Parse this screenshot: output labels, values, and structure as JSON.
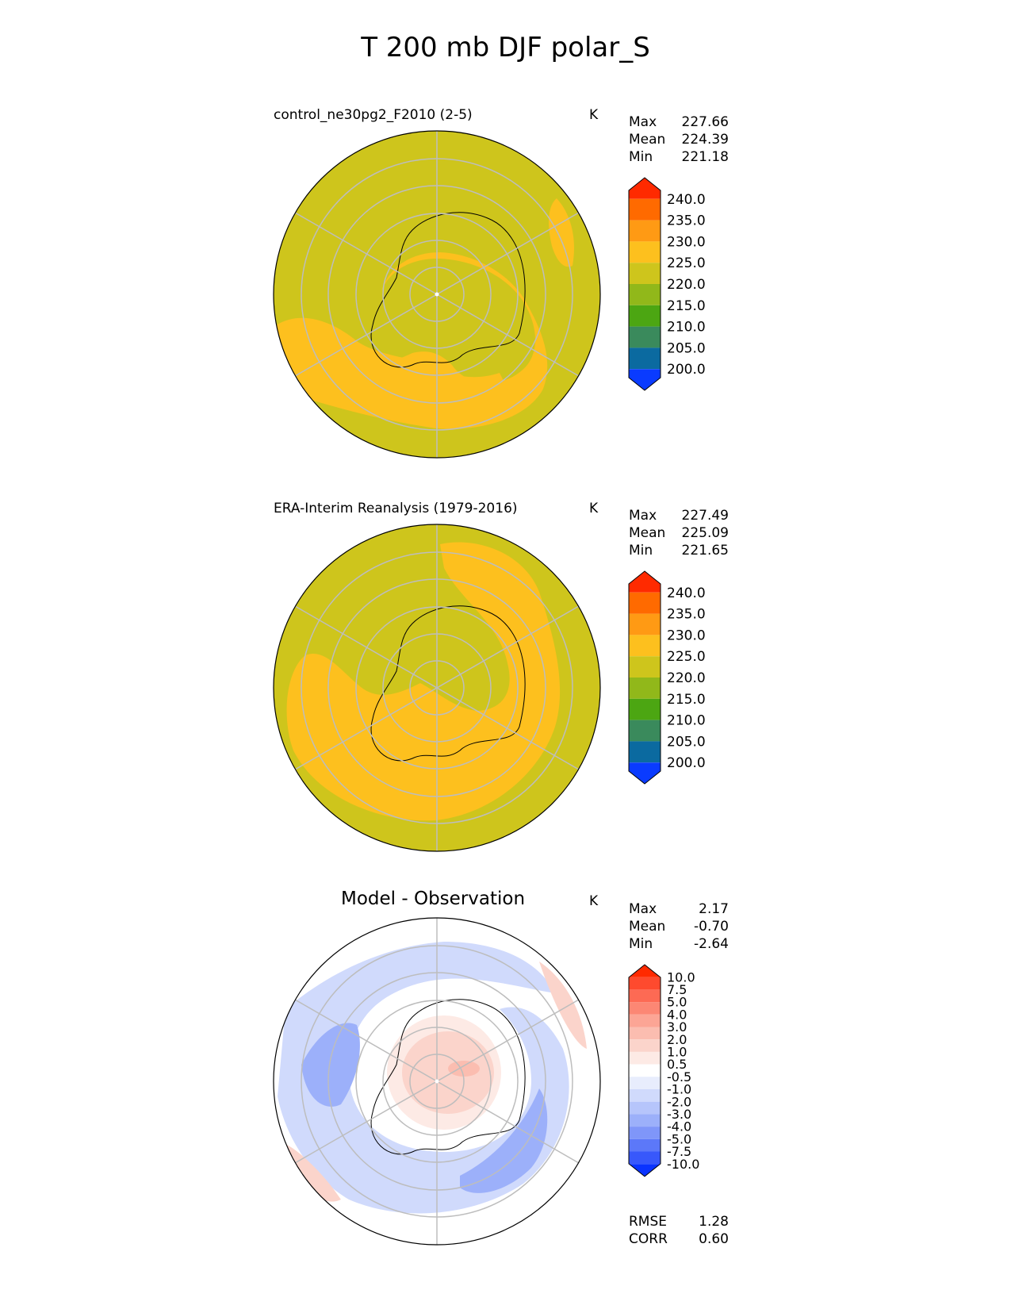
{
  "figure": {
    "title": "T 200 mb DJF polar_S"
  },
  "panels": [
    {
      "id": "test",
      "title": "control_ne30pg2_F2010 (2-5)",
      "units": "K",
      "stats": [
        {
          "label": "Max",
          "value": "227.66"
        },
        {
          "label": "Mean",
          "value": "224.39"
        },
        {
          "label": "Min",
          "value": "221.18"
        }
      ],
      "colorbar": {
        "ticks": [
          "240.0",
          "235.0",
          "230.0",
          "225.0",
          "220.0",
          "215.0",
          "210.0",
          "205.0",
          "200.0"
        ],
        "colors_top_to_bottom": [
          "#ff2a00",
          "#ff6a00",
          "#ff9a14",
          "#fdc01e",
          "#cec51c",
          "#91b81a",
          "#4ca612",
          "#3a8a5c",
          "#0b6aa0",
          "#0a3bff"
        ]
      }
    },
    {
      "id": "reference",
      "title": "ERA-Interim Reanalysis (1979-2016)",
      "units": "K",
      "stats": [
        {
          "label": "Max",
          "value": "227.49"
        },
        {
          "label": "Mean",
          "value": "225.09"
        },
        {
          "label": "Min",
          "value": "221.65"
        }
      ],
      "colorbar": {
        "ticks": [
          "240.0",
          "235.0",
          "230.0",
          "225.0",
          "220.0",
          "215.0",
          "210.0",
          "205.0",
          "200.0"
        ],
        "colors_top_to_bottom": [
          "#ff2a00",
          "#ff6a00",
          "#ff9a14",
          "#fdc01e",
          "#cec51c",
          "#91b81a",
          "#4ca612",
          "#3a8a5c",
          "#0b6aa0",
          "#0a3bff"
        ]
      }
    },
    {
      "id": "diff",
      "title": "Model - Observation",
      "units": "K",
      "stats": [
        {
          "label": "Max",
          "value": "2.17"
        },
        {
          "label": "Mean",
          "value": "-0.70"
        },
        {
          "label": "Min",
          "value": "-2.64"
        }
      ],
      "extra_stats": [
        {
          "label": "RMSE",
          "value": "1.28"
        },
        {
          "label": "CORR",
          "value": "0.60"
        }
      ],
      "colorbar": {
        "ticks": [
          "10.0",
          "7.5",
          "5.0",
          "4.0",
          "3.0",
          "2.0",
          "1.0",
          "0.5",
          "-0.5",
          "-1.0",
          "-2.0",
          "-3.0",
          "-4.0",
          "-5.0",
          "-7.5",
          "-10.0"
        ],
        "colors_top_to_bottom": [
          "#ff2a00",
          "#fe4a2e",
          "#fd6a54",
          "#fc8774",
          "#fca595",
          "#fbbdb0",
          "#fbd4cb",
          "#fdeae5",
          "#ffffff",
          "#e8edfd",
          "#d0dafc",
          "#b6c5fb",
          "#9cb0fa",
          "#7f96f9",
          "#5c78f9",
          "#3858fb",
          "#0a33ff"
        ]
      }
    }
  ],
  "chart_data": [
    {
      "type": "heatmap",
      "projection": "south polar stereographic",
      "title": "control_ne30pg2_F2010 (2-5)",
      "units": "K",
      "contour_levels": [
        200,
        205,
        210,
        215,
        220,
        225,
        230,
        235,
        240
      ],
      "field_summary": {
        "max": 227.66,
        "mean": 224.39,
        "min": 221.18
      },
      "regions": [
        {
          "level_band": "220-225",
          "description": "outer ring and northern sector"
        },
        {
          "level_band": "225-230",
          "description": "band over pole extending toward southeast sector"
        }
      ]
    },
    {
      "type": "heatmap",
      "projection": "south polar stereographic",
      "title": "ERA-Interim Reanalysis (1979-2016)",
      "units": "K",
      "contour_levels": [
        200,
        205,
        210,
        215,
        220,
        225,
        230,
        235,
        240
      ],
      "field_summary": {
        "max": 227.49,
        "mean": 225.09,
        "min": 221.65
      }
    },
    {
      "type": "heatmap",
      "projection": "south polar stereographic",
      "title": "Model - Observation",
      "units": "K",
      "contour_levels": [
        -10,
        -7.5,
        -5,
        -4,
        -3,
        -2,
        -1,
        -0.5,
        0.5,
        1,
        2,
        3,
        4,
        5,
        7.5,
        10
      ],
      "field_summary": {
        "max": 2.17,
        "mean": -0.7,
        "min": -2.64,
        "rmse": 1.28,
        "corr": 0.6
      }
    }
  ]
}
